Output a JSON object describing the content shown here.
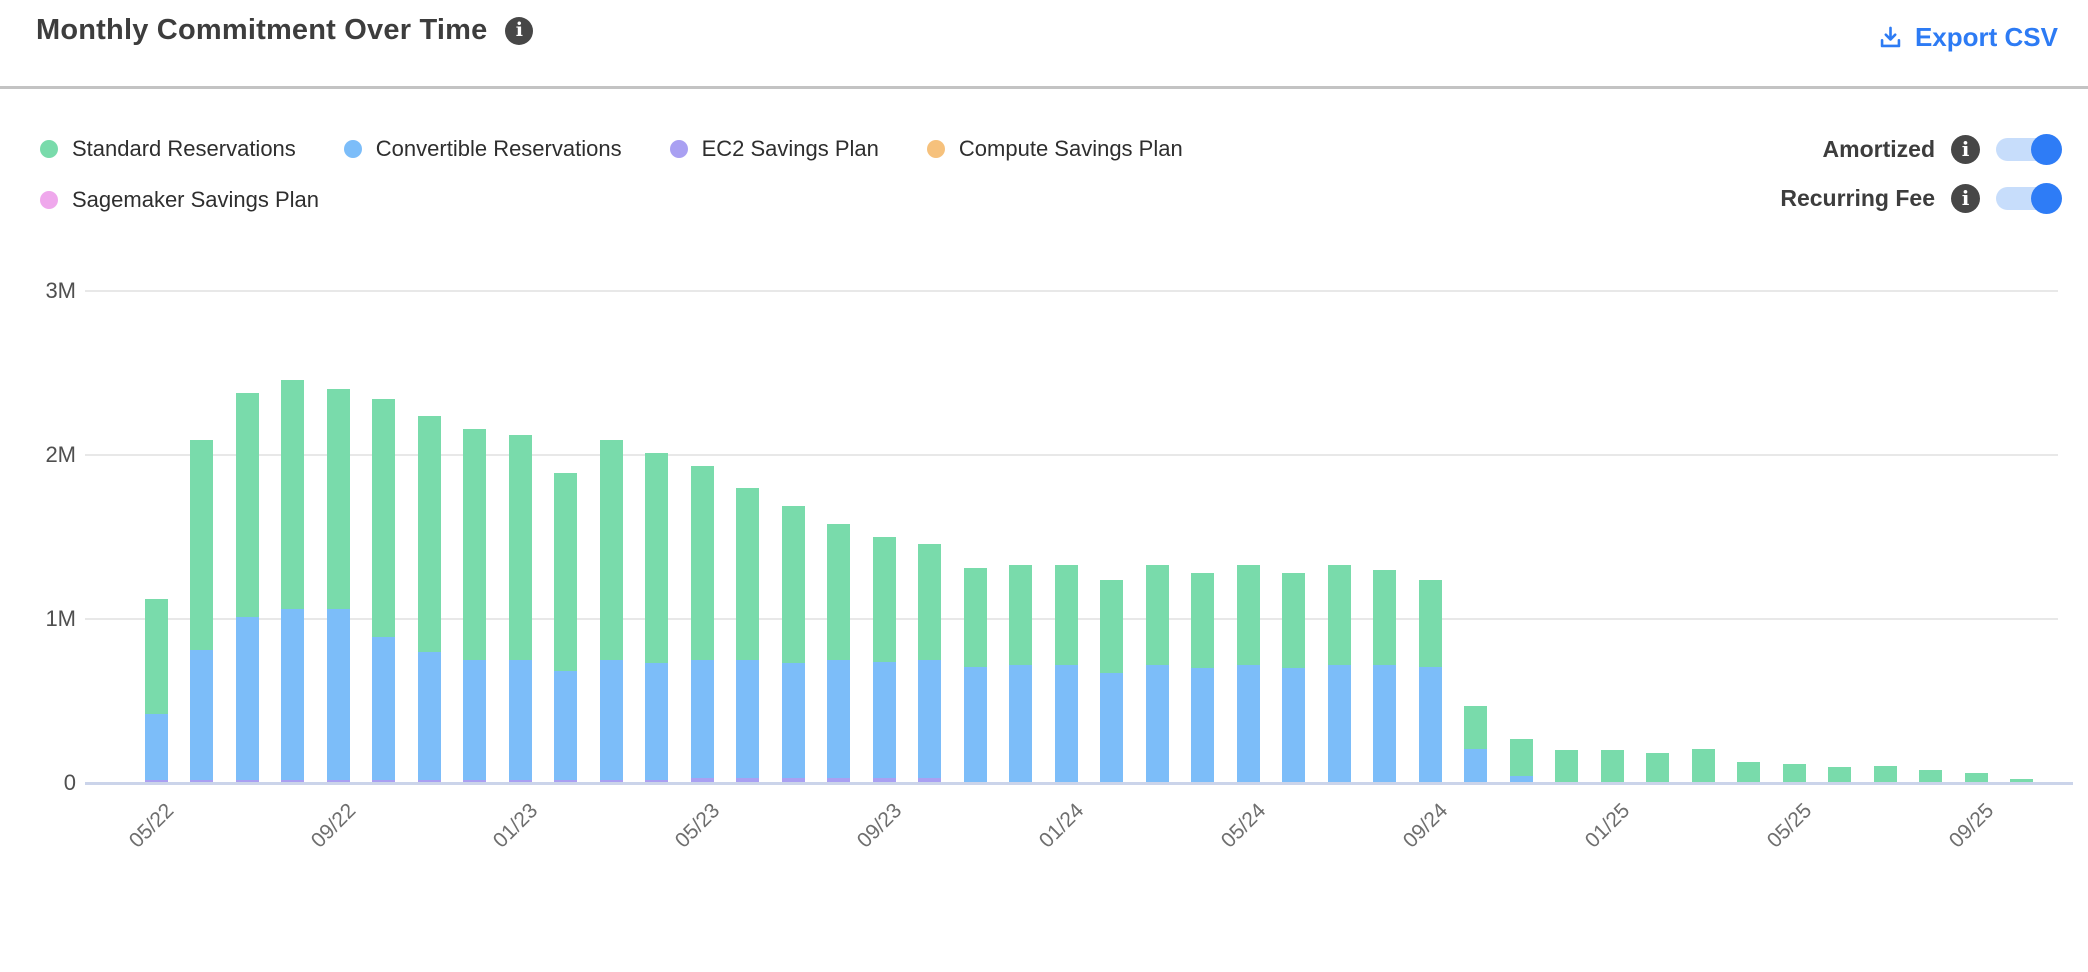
{
  "header": {
    "title": "Monthly Commitment Over Time",
    "export_label": "Export CSV",
    "info_glyph": "i"
  },
  "toggles": [
    {
      "label": "Amortized",
      "state": "on"
    },
    {
      "label": "Recurring Fee",
      "state": "on"
    }
  ],
  "colors": {
    "accent_blue": "#2d7bf4",
    "toggle_track": "#c7ddfb",
    "toggle_knob": "#2e7cf6",
    "info_circle": "#474747",
    "standard_green": "#79dbab",
    "convertible_blue": "#7cbdf9",
    "ec2_purple": "#a9a0f2",
    "compute_orange": "#f6c17c",
    "sagemaker_pink": "#efa8ec",
    "gridline": "#e8e8e8",
    "axis_baseline": "#cbd4ea"
  },
  "chart_data": {
    "type": "bar",
    "stacked": true,
    "title": "Monthly Commitment Over Time",
    "y_unit": "M",
    "ylim": [
      0,
      3
    ],
    "grid": true,
    "legend_position": "top-left",
    "y_ticks": [
      {
        "value": 0,
        "label": "0"
      },
      {
        "value": 1,
        "label": "1M"
      },
      {
        "value": 2,
        "label": "2M"
      },
      {
        "value": 3,
        "label": "3M"
      }
    ],
    "categories": [
      "05/22",
      "06/22",
      "07/22",
      "08/22",
      "09/22",
      "10/22",
      "11/22",
      "12/22",
      "01/23",
      "02/23",
      "03/23",
      "04/23",
      "05/23",
      "06/23",
      "07/23",
      "08/23",
      "09/23",
      "10/23",
      "11/23",
      "12/23",
      "01/24",
      "02/24",
      "03/24",
      "04/24",
      "05/24",
      "06/24",
      "07/24",
      "08/24",
      "09/24",
      "10/24",
      "11/24",
      "12/24",
      "01/25",
      "02/25",
      "03/25",
      "04/25",
      "05/25",
      "06/25",
      "07/25",
      "08/25",
      "09/25",
      "10/25"
    ],
    "x_ticks": [
      {
        "index": 0,
        "label": "05/22"
      },
      {
        "index": 4,
        "label": "09/22"
      },
      {
        "index": 8,
        "label": "01/23"
      },
      {
        "index": 12,
        "label": "05/23"
      },
      {
        "index": 16,
        "label": "09/23"
      },
      {
        "index": 20,
        "label": "01/24"
      },
      {
        "index": 24,
        "label": "05/24"
      },
      {
        "index": 28,
        "label": "09/24"
      },
      {
        "index": 32,
        "label": "01/25"
      },
      {
        "index": 36,
        "label": "05/25"
      },
      {
        "index": 40,
        "label": "09/25"
      }
    ],
    "series": [
      {
        "name": "Sagemaker Savings Plan",
        "color": "#efa8ec",
        "values": [
          0,
          0,
          0,
          0,
          0,
          0,
          0,
          0,
          0,
          0,
          0,
          0,
          0.008,
          0.008,
          0.008,
          0.008,
          0.008,
          0.008,
          0,
          0,
          0,
          0,
          0,
          0,
          0,
          0,
          0,
          0,
          0,
          0,
          0,
          0,
          0,
          0,
          0,
          0,
          0,
          0,
          0,
          0,
          0,
          0
        ]
      },
      {
        "name": "Compute Savings Plan",
        "color": "#f6c17c",
        "values": [
          0,
          0,
          0,
          0,
          0,
          0,
          0,
          0,
          0,
          0,
          0,
          0,
          0,
          0,
          0,
          0,
          0,
          0,
          0,
          0,
          0,
          0,
          0,
          0,
          0,
          0,
          0,
          0,
          0,
          0,
          0,
          0,
          0,
          0,
          0,
          0,
          0,
          0,
          0,
          0,
          0,
          0
        ]
      },
      {
        "name": "EC2 Savings Plan",
        "color": "#a9a0f2",
        "values": [
          0.02,
          0.02,
          0.02,
          0.02,
          0.02,
          0.02,
          0.02,
          0.02,
          0.02,
          0.02,
          0.02,
          0.02,
          0.02,
          0.02,
          0.02,
          0.02,
          0.02,
          0.02,
          0,
          0,
          0,
          0,
          0,
          0,
          0,
          0,
          0,
          0,
          0,
          0,
          0,
          0,
          0,
          0,
          0,
          0,
          0,
          0,
          0,
          0,
          0,
          0
        ]
      },
      {
        "name": "Convertible Reservations",
        "color": "#7cbdf9",
        "values": [
          0.4,
          0.79,
          0.99,
          1.04,
          1.04,
          0.87,
          0.78,
          0.73,
          0.73,
          0.66,
          0.73,
          0.71,
          0.722,
          0.722,
          0.702,
          0.722,
          0.712,
          0.722,
          0.71,
          0.72,
          0.72,
          0.67,
          0.72,
          0.7,
          0.72,
          0.7,
          0.72,
          0.72,
          0.71,
          0.21,
          0.04,
          0,
          0,
          0,
          0,
          0,
          0,
          0,
          0,
          0,
          0,
          0
        ]
      },
      {
        "name": "Standard Reservations",
        "color": "#79dbab",
        "values": [
          0.7,
          1.28,
          1.37,
          1.4,
          1.34,
          1.45,
          1.44,
          1.41,
          1.37,
          1.21,
          1.34,
          1.28,
          1.18,
          1.05,
          0.96,
          0.83,
          0.76,
          0.71,
          0.6,
          0.61,
          0.61,
          0.57,
          0.61,
          0.58,
          0.61,
          0.58,
          0.61,
          0.58,
          0.53,
          0.26,
          0.23,
          0.2,
          0.2,
          0.18,
          0.21,
          0.13,
          0.115,
          0.1,
          0.105,
          0.08,
          0.06,
          0.026
        ]
      }
    ],
    "legend_order": [
      "Standard Reservations",
      "Convertible Reservations",
      "EC2 Savings Plan",
      "Compute Savings Plan",
      "Sagemaker Savings Plan"
    ],
    "legend_rows": [
      4,
      1
    ]
  }
}
